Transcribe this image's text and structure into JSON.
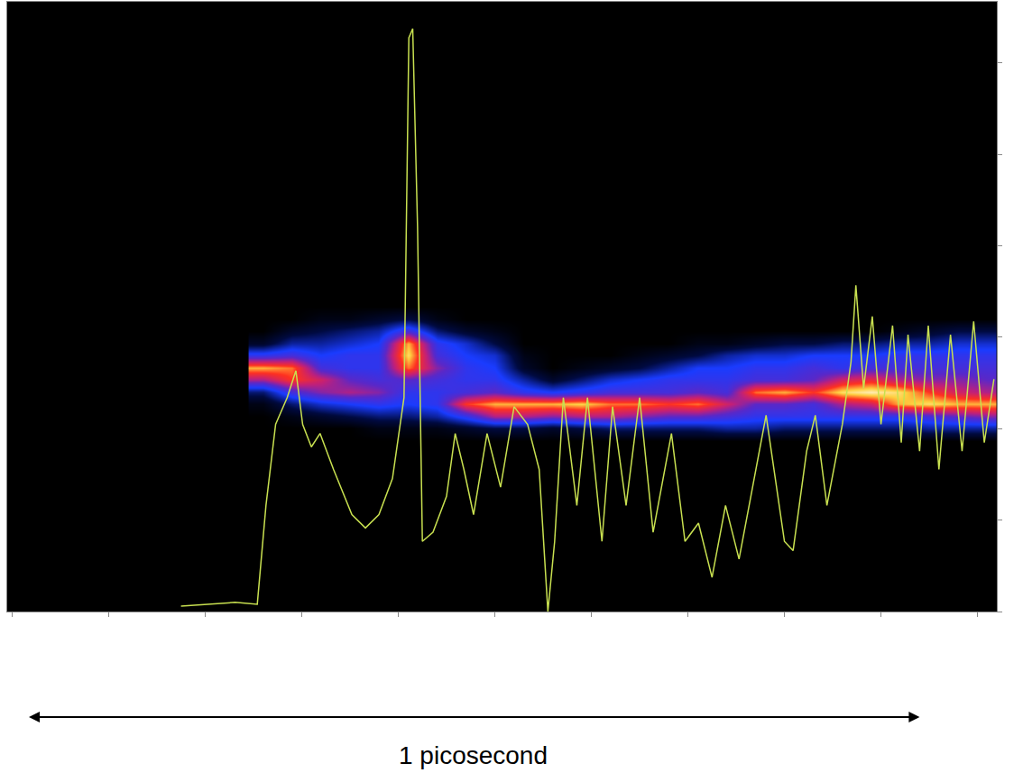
{
  "chart_data": {
    "type": "line",
    "color": "#c8e050",
    "x": [
      17.5,
      23.1,
      25.4,
      26.3,
      27.3,
      28.5,
      29.4,
      30.1,
      31.0,
      31.9,
      33.3,
      35.2,
      36.6,
      38.0,
      39.4,
      40.6,
      41.1,
      41.5,
      42.0,
      42.5,
      43.6,
      45.0,
      45.9,
      46.8,
      47.8,
      49.2,
      50.6,
      52.0,
      53.4,
      54.6,
      55.5,
      56.2,
      57.1,
      58.5,
      59.6,
      61.1,
      62.2,
      63.6,
      65.0,
      66.4,
      68.3,
      69.7,
      71.1,
      72.5,
      73.9,
      75.3,
      76.7,
      78.1,
      80.0,
      80.9,
      82.3,
      83.2,
      84.4,
      86.0,
      86.9,
      87.4,
      88.2,
      89.1,
      90.0,
      91.2,
      92.1,
      92.8,
      94.0,
      94.9,
      96.0,
      97.2,
      98.4,
      99.6,
      100.7,
      101.7
    ],
    "values": [
      0.9,
      1.5,
      1.2,
      17.4,
      30.7,
      35.1,
      39.5,
      30.7,
      27.0,
      29.2,
      23.3,
      15.9,
      13.7,
      15.9,
      21.8,
      35.1,
      94.1,
      95.6,
      63.1,
      11.5,
      13.0,
      18.9,
      29.2,
      23.3,
      15.9,
      29.2,
      20.4,
      33.6,
      30.7,
      23.3,
      0,
      11.5,
      35.1,
      17.4,
      35.1,
      11.5,
      33.6,
      17.4,
      35.1,
      13.0,
      29.2,
      11.5,
      14.5,
      5.6,
      17.4,
      8.6,
      20.4,
      32.2,
      11.5,
      10.0,
      26.3,
      32.2,
      17.4,
      30.7,
      41.0,
      53.5,
      36.6,
      48.4,
      30.7,
      46.9,
      27.7,
      45.4,
      26.3,
      46.9,
      23.3,
      45.4,
      26.3,
      47.6,
      27.7,
      38.1
    ],
    "xlim": [
      -0.5,
      102
    ],
    "xticks": [
      0,
      10,
      20,
      30,
      40,
      50,
      60,
      70,
      80,
      90,
      100
    ],
    "ylim": [
      0,
      100
    ],
    "yticks": [
      0,
      15,
      30,
      45,
      60,
      75,
      90
    ],
    "tick_labels": false,
    "grid": false,
    "heatmap": {
      "x": [
        26,
        29,
        32,
        35,
        38,
        41,
        44,
        47,
        50,
        53,
        56,
        59,
        62,
        65,
        68,
        71,
        74,
        77,
        80,
        83,
        86,
        89,
        92,
        95,
        98,
        101
      ],
      "y": [
        28,
        30,
        32,
        34,
        36,
        38,
        40,
        42,
        44,
        46,
        48,
        50,
        52
      ],
      "z": [
        [
          0,
          0,
          0,
          0,
          0,
          0,
          0,
          0,
          0,
          0,
          0,
          0,
          0,
          0,
          0,
          0,
          0,
          0,
          0,
          0,
          0,
          0,
          0,
          0,
          0,
          0
        ],
        [
          0,
          0,
          0,
          0,
          5,
          5,
          5,
          10,
          15,
          15,
          10,
          15,
          20,
          20,
          20,
          20,
          25,
          25,
          20,
          20,
          20,
          20,
          20,
          25,
          25,
          25
        ],
        [
          0,
          5,
          10,
          15,
          20,
          20,
          25,
          40,
          60,
          60,
          55,
          60,
          60,
          55,
          50,
          50,
          45,
          40,
          40,
          40,
          40,
          40,
          40,
          45,
          50,
          55
        ],
        [
          5,
          20,
          30,
          35,
          40,
          35,
          40,
          75,
          85,
          85,
          85,
          88,
          80,
          80,
          75,
          80,
          65,
          50,
          50,
          45,
          60,
          65,
          85,
          90,
          85,
          85
        ],
        [
          20,
          45,
          55,
          60,
          55,
          40,
          40,
          45,
          50,
          40,
          35,
          40,
          45,
          45,
          45,
          50,
          45,
          80,
          85,
          75,
          90,
          95,
          90,
          75,
          65,
          60
        ],
        [
          60,
          75,
          65,
          50,
          45,
          50,
          45,
          40,
          40,
          25,
          10,
          20,
          30,
          35,
          40,
          40,
          40,
          45,
          45,
          50,
          65,
          70,
          60,
          55,
          55,
          50
        ],
        [
          85,
          80,
          45,
          40,
          40,
          80,
          55,
          40,
          35,
          10,
          0,
          5,
          10,
          15,
          25,
          35,
          35,
          40,
          40,
          45,
          40,
          45,
          45,
          45,
          45,
          45
        ],
        [
          40,
          45,
          35,
          40,
          40,
          90,
          45,
          35,
          30,
          5,
          0,
          0,
          0,
          5,
          10,
          15,
          25,
          30,
          30,
          35,
          35,
          35,
          40,
          40,
          40,
          40
        ],
        [
          10,
          25,
          25,
          30,
          35,
          85,
          40,
          30,
          15,
          0,
          0,
          0,
          0,
          0,
          0,
          5,
          5,
          10,
          15,
          15,
          20,
          20,
          25,
          25,
          30,
          30
        ],
        [
          0,
          10,
          15,
          20,
          25,
          45,
          20,
          10,
          5,
          0,
          0,
          0,
          0,
          0,
          0,
          0,
          0,
          0,
          0,
          0,
          0,
          0,
          5,
          10,
          15,
          15
        ],
        [
          0,
          0,
          5,
          5,
          10,
          15,
          5,
          0,
          0,
          0,
          0,
          0,
          0,
          0,
          0,
          0,
          0,
          0,
          0,
          0,
          0,
          0,
          0,
          0,
          0,
          0
        ],
        [
          0,
          0,
          0,
          0,
          0,
          0,
          0,
          0,
          0,
          0,
          0,
          0,
          0,
          0,
          0,
          0,
          0,
          0,
          0,
          0,
          0,
          0,
          0,
          0,
          0,
          0
        ],
        [
          0,
          0,
          0,
          0,
          0,
          0,
          0,
          0,
          0,
          0,
          0,
          0,
          0,
          0,
          0,
          0,
          0,
          0,
          0,
          0,
          0,
          0,
          0,
          0,
          0,
          0
        ]
      ],
      "zlim": [
        0,
        100
      ]
    },
    "annotations": [
      {
        "text": "1 picosecond",
        "x": [
          1.6,
          94
        ]
      }
    ]
  }
}
